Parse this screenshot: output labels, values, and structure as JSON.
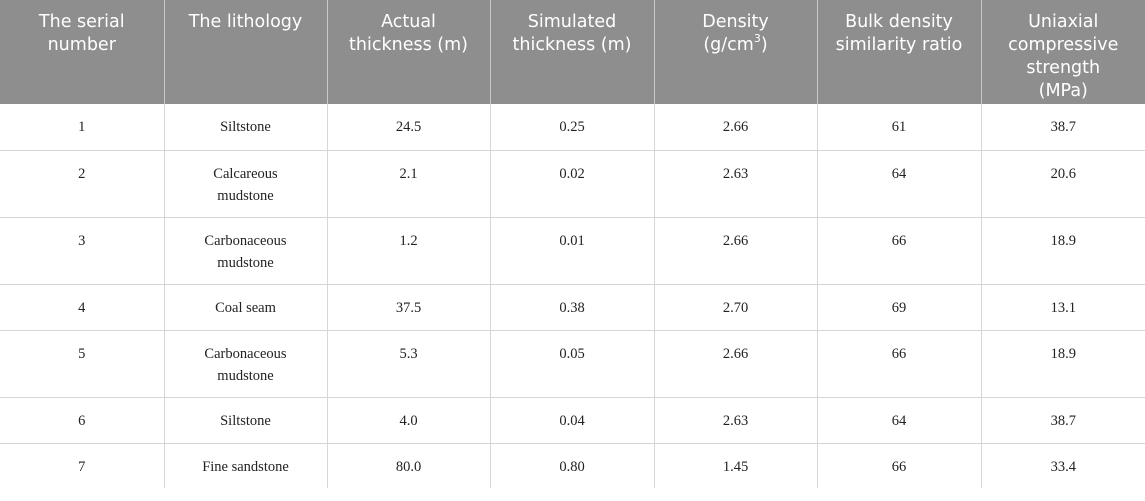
{
  "table": {
    "headers": {
      "serial": "The serial number",
      "lithology": "The lithology",
      "actual": "Actual thickness (m)",
      "simulated": "Simulated thickness (m)",
      "density_main": "Density (g/cm",
      "density_sup": "3",
      "density_end": ")",
      "bulk": "Bulk density similarity ratio",
      "ucs": "Uniaxial compressive strength (MPa)"
    },
    "rows": [
      {
        "serial": "1",
        "lithology": "Siltstone",
        "actual": "24.5",
        "simulated": "0.25",
        "density": "2.66",
        "bulk": "61",
        "ucs": "38.7"
      },
      {
        "serial": "2",
        "lithology": "Calcareous mudstone",
        "actual": "2.1",
        "simulated": "0.02",
        "density": "2.63",
        "bulk": "64",
        "ucs": "20.6"
      },
      {
        "serial": "3",
        "lithology": "Carbonaceous mudstone",
        "actual": "1.2",
        "simulated": "0.01",
        "density": "2.66",
        "bulk": "66",
        "ucs": "18.9"
      },
      {
        "serial": "4",
        "lithology": "Coal seam",
        "actual": "37.5",
        "simulated": "0.38",
        "density": "2.70",
        "bulk": "69",
        "ucs": "13.1"
      },
      {
        "serial": "5",
        "lithology": "Carbonaceous mudstone",
        "actual": "5.3",
        "simulated": "0.05",
        "density": "2.66",
        "bulk": "66",
        "ucs": "18.9"
      },
      {
        "serial": "6",
        "lithology": "Siltstone",
        "actual": "4.0",
        "simulated": "0.04",
        "density": "2.63",
        "bulk": "64",
        "ucs": "38.7"
      },
      {
        "serial": "7",
        "lithology": "Fine sandstone",
        "actual": "80.0",
        "simulated": "0.80",
        "density": "1.45",
        "bulk": "66",
        "ucs": "33.4"
      }
    ]
  }
}
